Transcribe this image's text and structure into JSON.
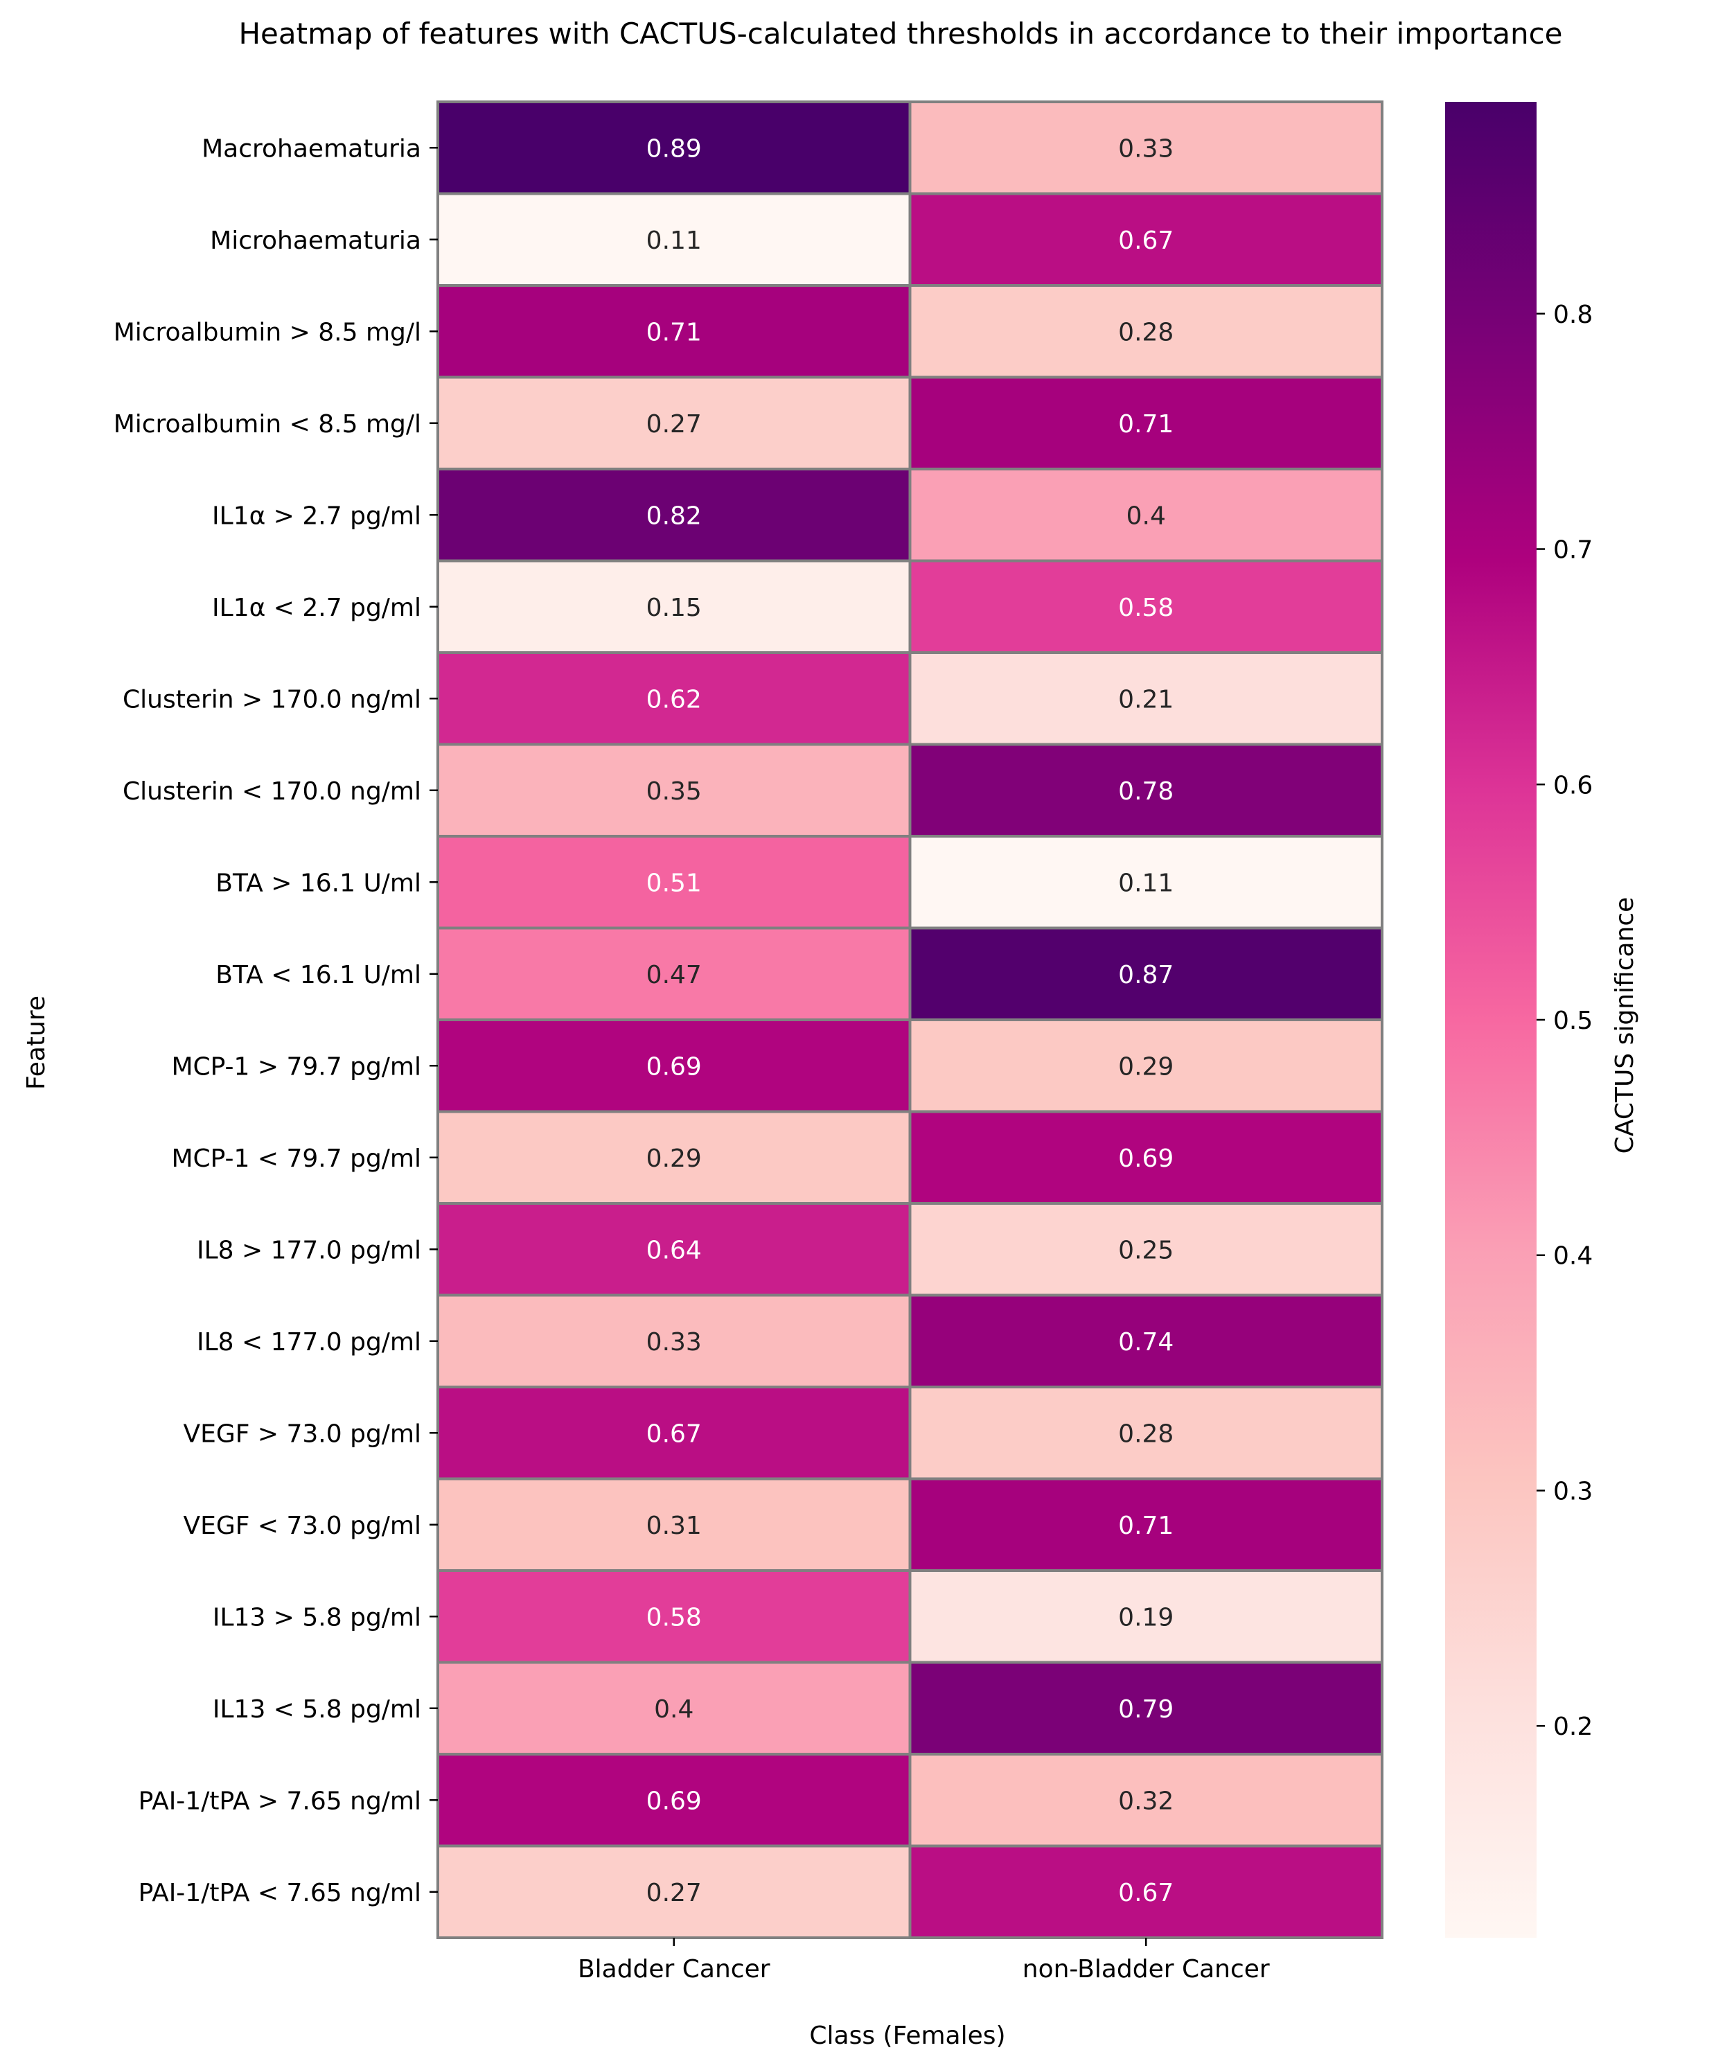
{
  "chart_data": {
    "type": "heatmap",
    "title": "Heatmap of features with CACTUS-calculated thresholds in accordance to their importance",
    "xlabel": "Class (Females)",
    "ylabel": "Feature",
    "columns": [
      "Bladder Cancer",
      "non-Bladder Cancer"
    ],
    "rows": [
      "Macrohaematuria",
      "Microhaematuria",
      "Microalbumin > 8.5 mg/l",
      "Microalbumin < 8.5 mg/l",
      "IL1α > 2.7 pg/ml",
      "IL1α < 2.7 pg/ml",
      "Clusterin > 170.0 ng/ml",
      "Clusterin < 170.0 ng/ml",
      "BTA > 16.1 U/ml",
      "BTA < 16.1 U/ml",
      "MCP-1 > 79.7 pg/ml",
      "MCP-1 < 79.7 pg/ml",
      "IL8 > 177.0 pg/ml",
      "IL8 < 177.0 pg/ml",
      "VEGF > 73.0 pg/ml",
      "VEGF < 73.0 pg/ml",
      "IL13 > 5.8 pg/ml",
      "IL13 < 5.8 pg/ml",
      "PAI-1/tPA > 7.65 ng/ml",
      "PAI-1/tPA < 7.65 ng/ml"
    ],
    "values": [
      [
        0.89,
        0.33
      ],
      [
        0.11,
        0.67
      ],
      [
        0.71,
        0.28
      ],
      [
        0.27,
        0.71
      ],
      [
        0.82,
        0.4
      ],
      [
        0.15,
        0.58
      ],
      [
        0.62,
        0.21
      ],
      [
        0.35,
        0.78
      ],
      [
        0.51,
        0.11
      ],
      [
        0.47,
        0.87
      ],
      [
        0.69,
        0.29
      ],
      [
        0.29,
        0.69
      ],
      [
        0.64,
        0.25
      ],
      [
        0.33,
        0.74
      ],
      [
        0.67,
        0.28
      ],
      [
        0.31,
        0.71
      ],
      [
        0.58,
        0.19
      ],
      [
        0.4,
        0.79
      ],
      [
        0.69,
        0.32
      ],
      [
        0.27,
        0.67
      ]
    ],
    "colorbar": {
      "label": "CACTUS significance",
      "range": [
        0.11,
        0.89
      ],
      "ticks": [
        0.2,
        0.3,
        0.4,
        0.5,
        0.6,
        0.7,
        0.8
      ],
      "colormap": "RdPu",
      "stops": [
        "#fff7f3",
        "#fde0dd",
        "#fcc5c0",
        "#fa9fb5",
        "#f768a1",
        "#dd3497",
        "#ae017e",
        "#7a0177",
        "#49006a"
      ]
    },
    "cell_border_color": "#808080",
    "light_text_color": "#ffffff",
    "dark_text_color": "#262626"
  }
}
